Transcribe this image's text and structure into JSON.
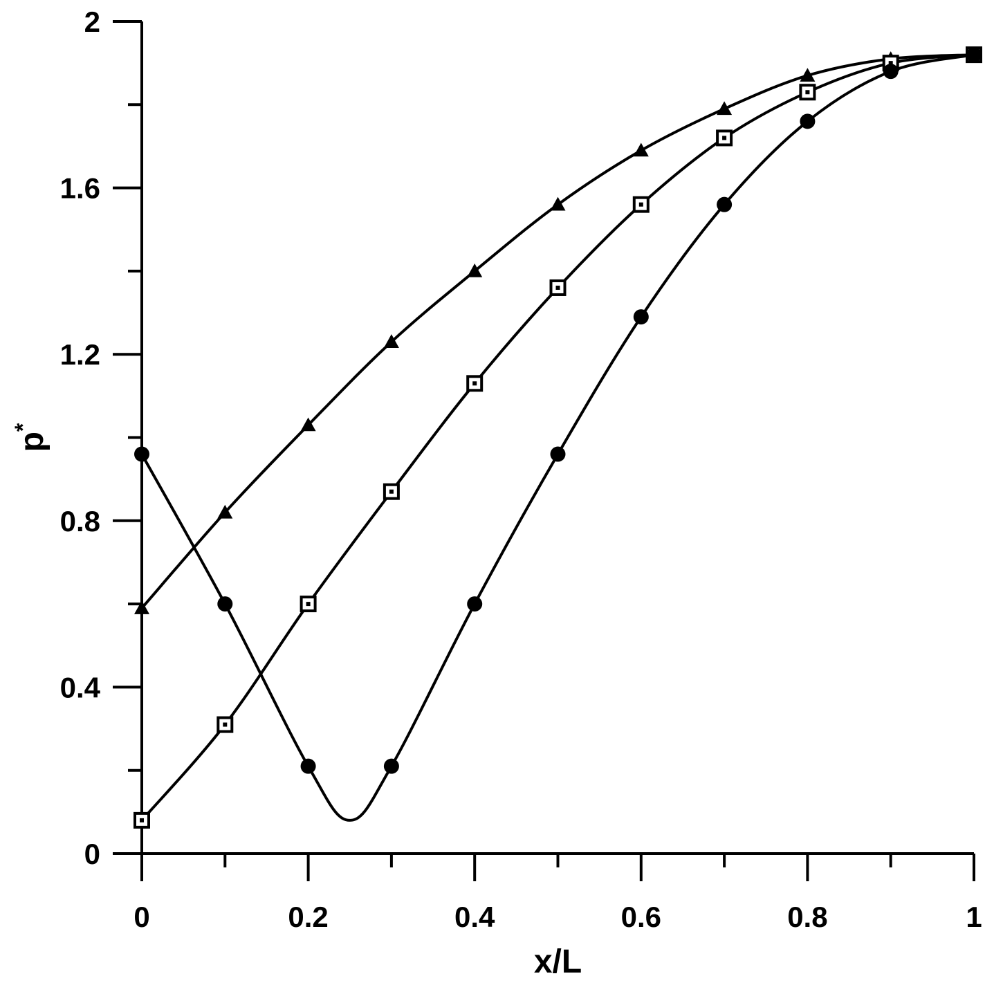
{
  "chart_data": {
    "type": "line",
    "xlabel": "x/L",
    "ylabel": "p",
    "ylabel_superscript": "*",
    "xlim": [
      0,
      1
    ],
    "ylim": [
      0,
      2
    ],
    "x_ticks": [
      {
        "value": 0,
        "label": "0"
      },
      {
        "value": 0.2,
        "label": "0.2"
      },
      {
        "value": 0.4,
        "label": "0.4"
      },
      {
        "value": 0.6,
        "label": "0.6"
      },
      {
        "value": 0.8,
        "label": "0.8"
      },
      {
        "value": 1,
        "label": "1"
      }
    ],
    "x_minor_ticks": [
      0.1,
      0.3,
      0.5,
      0.7,
      0.9
    ],
    "y_ticks": [
      {
        "value": 0,
        "label": "0"
      },
      {
        "value": 0.4,
        "label": "0.4"
      },
      {
        "value": 0.8,
        "label": "0.8"
      },
      {
        "value": 1.2,
        "label": "1.2"
      },
      {
        "value": 1.6,
        "label": "1.6"
      },
      {
        "value": 2,
        "label": "2"
      }
    ],
    "y_minor_ticks": [
      0.2,
      0.6,
      1.0,
      1.4,
      1.8
    ],
    "grid": false,
    "series": [
      {
        "marker": "triangle",
        "x": [
          0,
          0.1,
          0.2,
          0.3,
          0.4,
          0.5,
          0.6,
          0.7,
          0.8,
          0.9,
          1.0
        ],
        "y": [
          0.59,
          0.82,
          1.03,
          1.23,
          1.4,
          1.56,
          1.69,
          1.79,
          1.87,
          1.91,
          1.92
        ]
      },
      {
        "marker": "open-square",
        "x": [
          0,
          0.1,
          0.2,
          0.3,
          0.4,
          0.5,
          0.6,
          0.7,
          0.8,
          0.9,
          1.0
        ],
        "y": [
          0.08,
          0.31,
          0.6,
          0.87,
          1.13,
          1.36,
          1.56,
          1.72,
          1.83,
          1.9,
          1.92
        ]
      },
      {
        "marker": "filled-circle",
        "x": [
          0,
          0.1,
          0.2,
          0.3,
          0.4,
          0.5,
          0.6,
          0.7,
          0.8,
          0.9,
          1.0
        ],
        "y": [
          0.96,
          0.6,
          0.21,
          0.21,
          0.6,
          0.96,
          1.29,
          1.56,
          1.76,
          1.88,
          1.92
        ],
        "curve_minimum": {
          "x": 0.25,
          "y": 0.08
        }
      }
    ]
  }
}
